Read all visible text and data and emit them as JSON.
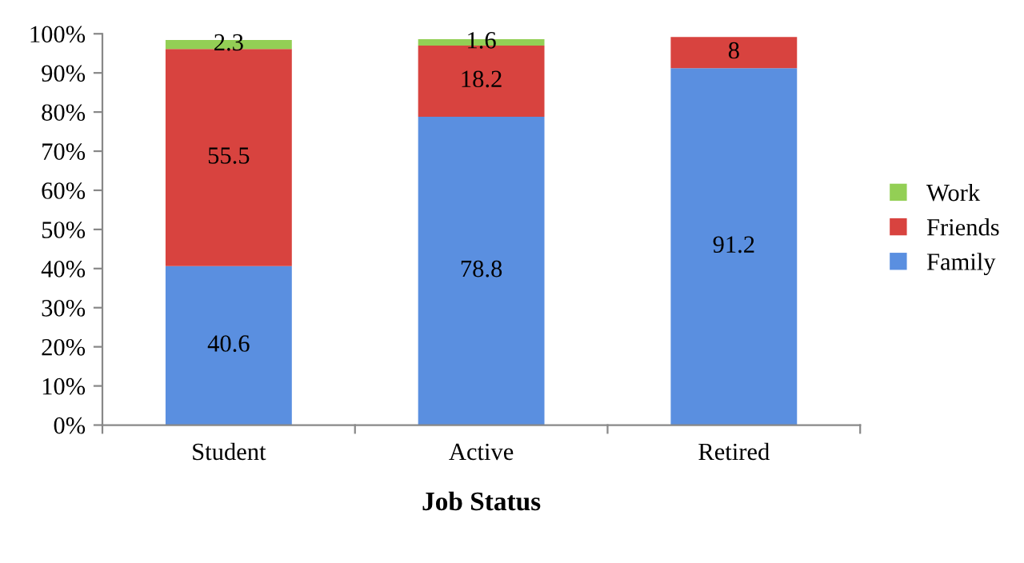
{
  "chart_data": {
    "type": "bar",
    "stacked": true,
    "xlabel": "Job Status",
    "categories": [
      "Student",
      "Active",
      "Retired"
    ],
    "series": [
      {
        "name": "Family",
        "color": "#5a8fe0",
        "values": [
          40.6,
          78.8,
          91.2
        ]
      },
      {
        "name": "Friends",
        "color": "#d8433f",
        "values": [
          55.5,
          18.2,
          8
        ]
      },
      {
        "name": "Work",
        "color": "#93cf55",
        "values": [
          2.3,
          1.6,
          null
        ]
      }
    ],
    "ylim": [
      0,
      100
    ],
    "yticks": [
      {
        "value": 0,
        "label": "0%"
      },
      {
        "value": 10,
        "label": "10%"
      },
      {
        "value": 20,
        "label": "20%"
      },
      {
        "value": 30,
        "label": "30%"
      },
      {
        "value": 40,
        "label": "40%"
      },
      {
        "value": 50,
        "label": "50%"
      },
      {
        "value": 60,
        "label": "60%"
      },
      {
        "value": 70,
        "label": "70%"
      },
      {
        "value": 80,
        "label": "80%"
      },
      {
        "value": 90,
        "label": "90%"
      },
      {
        "value": 100,
        "label": "100%"
      }
    ],
    "data_labels": true,
    "legend": "right",
    "grid": false
  }
}
